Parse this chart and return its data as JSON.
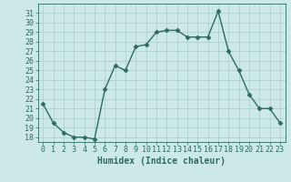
{
  "x": [
    0,
    1,
    2,
    3,
    4,
    5,
    6,
    7,
    8,
    9,
    10,
    11,
    12,
    13,
    14,
    15,
    16,
    17,
    18,
    19,
    20,
    21,
    22,
    23
  ],
  "y": [
    21.5,
    19.5,
    18.5,
    18.0,
    18.0,
    17.8,
    23.0,
    25.5,
    25.0,
    27.5,
    27.7,
    29.0,
    29.2,
    29.2,
    28.5,
    28.5,
    28.5,
    31.2,
    27.0,
    25.0,
    22.5,
    21.0,
    21.0,
    19.5
  ],
  "xlabel": "Humidex (Indice chaleur)",
  "ylim_min": 17.5,
  "ylim_max": 32.0,
  "yticks": [
    18,
    19,
    20,
    21,
    22,
    23,
    24,
    25,
    26,
    27,
    28,
    29,
    30,
    31
  ],
  "xticks": [
    0,
    1,
    2,
    3,
    4,
    5,
    6,
    7,
    8,
    9,
    10,
    11,
    12,
    13,
    14,
    15,
    16,
    17,
    18,
    19,
    20,
    21,
    22,
    23
  ],
  "line_color": "#2e6b5e",
  "marker": "D",
  "marker_size": 2.5,
  "bg_color": "#cce8e8",
  "grid_color": "#aacccc",
  "tick_label_fontsize": 6,
  "xlabel_fontsize": 7,
  "line_width": 1.0
}
